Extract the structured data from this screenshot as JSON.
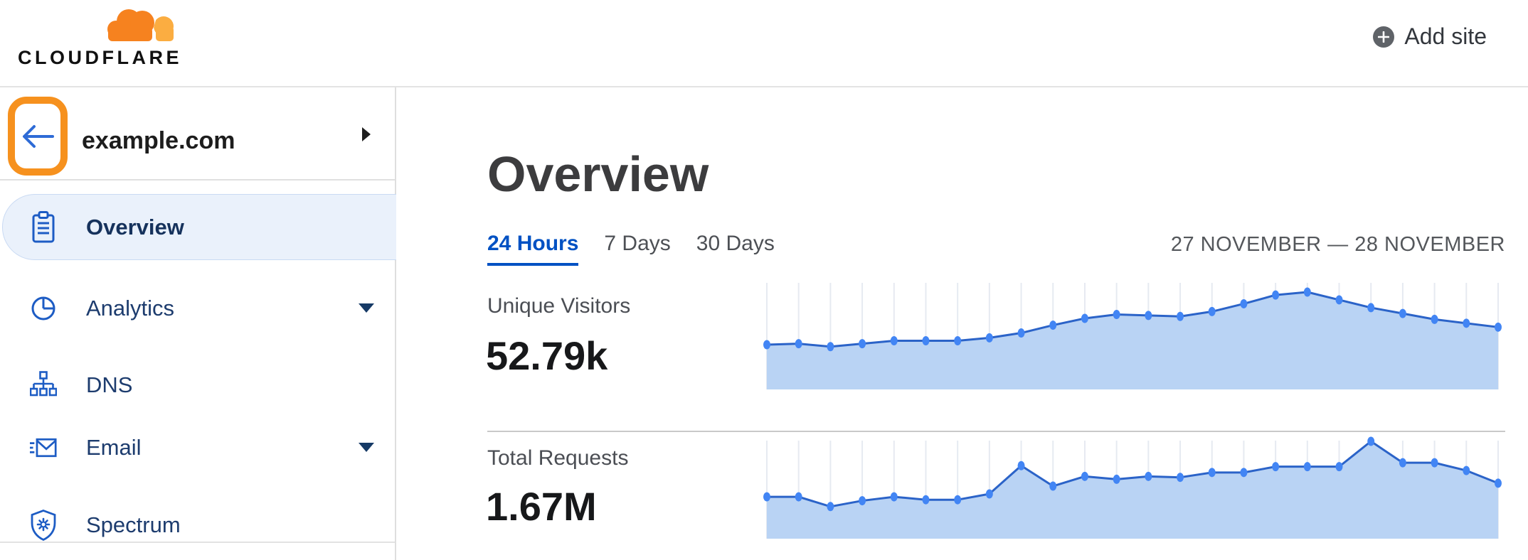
{
  "header": {
    "logo_text": "CLOUDFLARE",
    "add_site_label": "Add site"
  },
  "sidebar": {
    "site_name": "example.com",
    "items": [
      {
        "label": "Overview",
        "icon": "clipboard-icon",
        "active": true,
        "has_submenu": false
      },
      {
        "label": "Analytics",
        "icon": "pie-chart-icon",
        "active": false,
        "has_submenu": true
      },
      {
        "label": "DNS",
        "icon": "sitemap-icon",
        "active": false,
        "has_submenu": false
      },
      {
        "label": "Email",
        "icon": "email-icon",
        "active": false,
        "has_submenu": true
      },
      {
        "label": "Spectrum",
        "icon": "shield-icon",
        "active": false,
        "has_submenu": false
      }
    ]
  },
  "main": {
    "title": "Overview",
    "time_tabs": [
      {
        "label": "24 Hours",
        "active": true
      },
      {
        "label": "7 Days",
        "active": false
      },
      {
        "label": "30 Days",
        "active": false
      }
    ],
    "date_range": "27 NOVEMBER — 28 NOVEMBER",
    "stats": [
      {
        "label": "Unique Visitors",
        "value": "52.79k"
      },
      {
        "label": "Total Requests",
        "value": "1.67M"
      }
    ]
  },
  "chart_data": [
    {
      "type": "area",
      "title": "Unique Visitors",
      "summary_value": "52.79k",
      "points": 24,
      "x_description": "24 hourly intervals, 27 November — 28 November (no x tick labels shown)",
      "values_percent_of_peak": [
        46,
        47,
        44,
        47,
        50,
        50,
        50,
        53,
        58,
        66,
        73,
        77,
        76,
        75,
        80,
        88,
        97,
        100,
        92,
        84,
        78,
        72,
        68,
        64
      ],
      "ylim": [
        0,
        100
      ],
      "xlabel": "",
      "ylabel": "",
      "grid": "vertical line at each point",
      "legend": "none",
      "line_color": "#2B63C8",
      "fill_color": "#B9D3F4",
      "dot_color": "#4285F4"
    },
    {
      "type": "area",
      "title": "Total Requests",
      "summary_value": "1.67M",
      "points": 24,
      "x_description": "24 hourly intervals, 27 November — 28 November (no x tick labels shown)",
      "values_percent_of_peak": [
        43,
        43,
        33,
        39,
        43,
        40,
        40,
        46,
        75,
        54,
        64,
        61,
        64,
        63,
        68,
        68,
        74,
        74,
        74,
        100,
        78,
        78,
        70,
        57
      ],
      "ylim": [
        0,
        100
      ],
      "xlabel": "",
      "ylabel": "",
      "grid": "vertical line at each point",
      "legend": "none",
      "line_color": "#2B63C8",
      "fill_color": "#B9D3F4",
      "dot_color": "#4285F4"
    }
  ],
  "colors": {
    "brand_orange": "#F6821F",
    "brand_orange_light": "#FBAD41",
    "annotation_orange": "#F6911E",
    "link_blue": "#0051C3",
    "nav_icon_blue": "#1D5CC4",
    "nav_text_navy": "#1D3C6E",
    "active_pill_bg": "#EAF1FB",
    "chart_line": "#2B63C8",
    "chart_fill": "#B9D3F4",
    "chart_dot": "#4285F4",
    "gridline": "#E6EAF1"
  }
}
